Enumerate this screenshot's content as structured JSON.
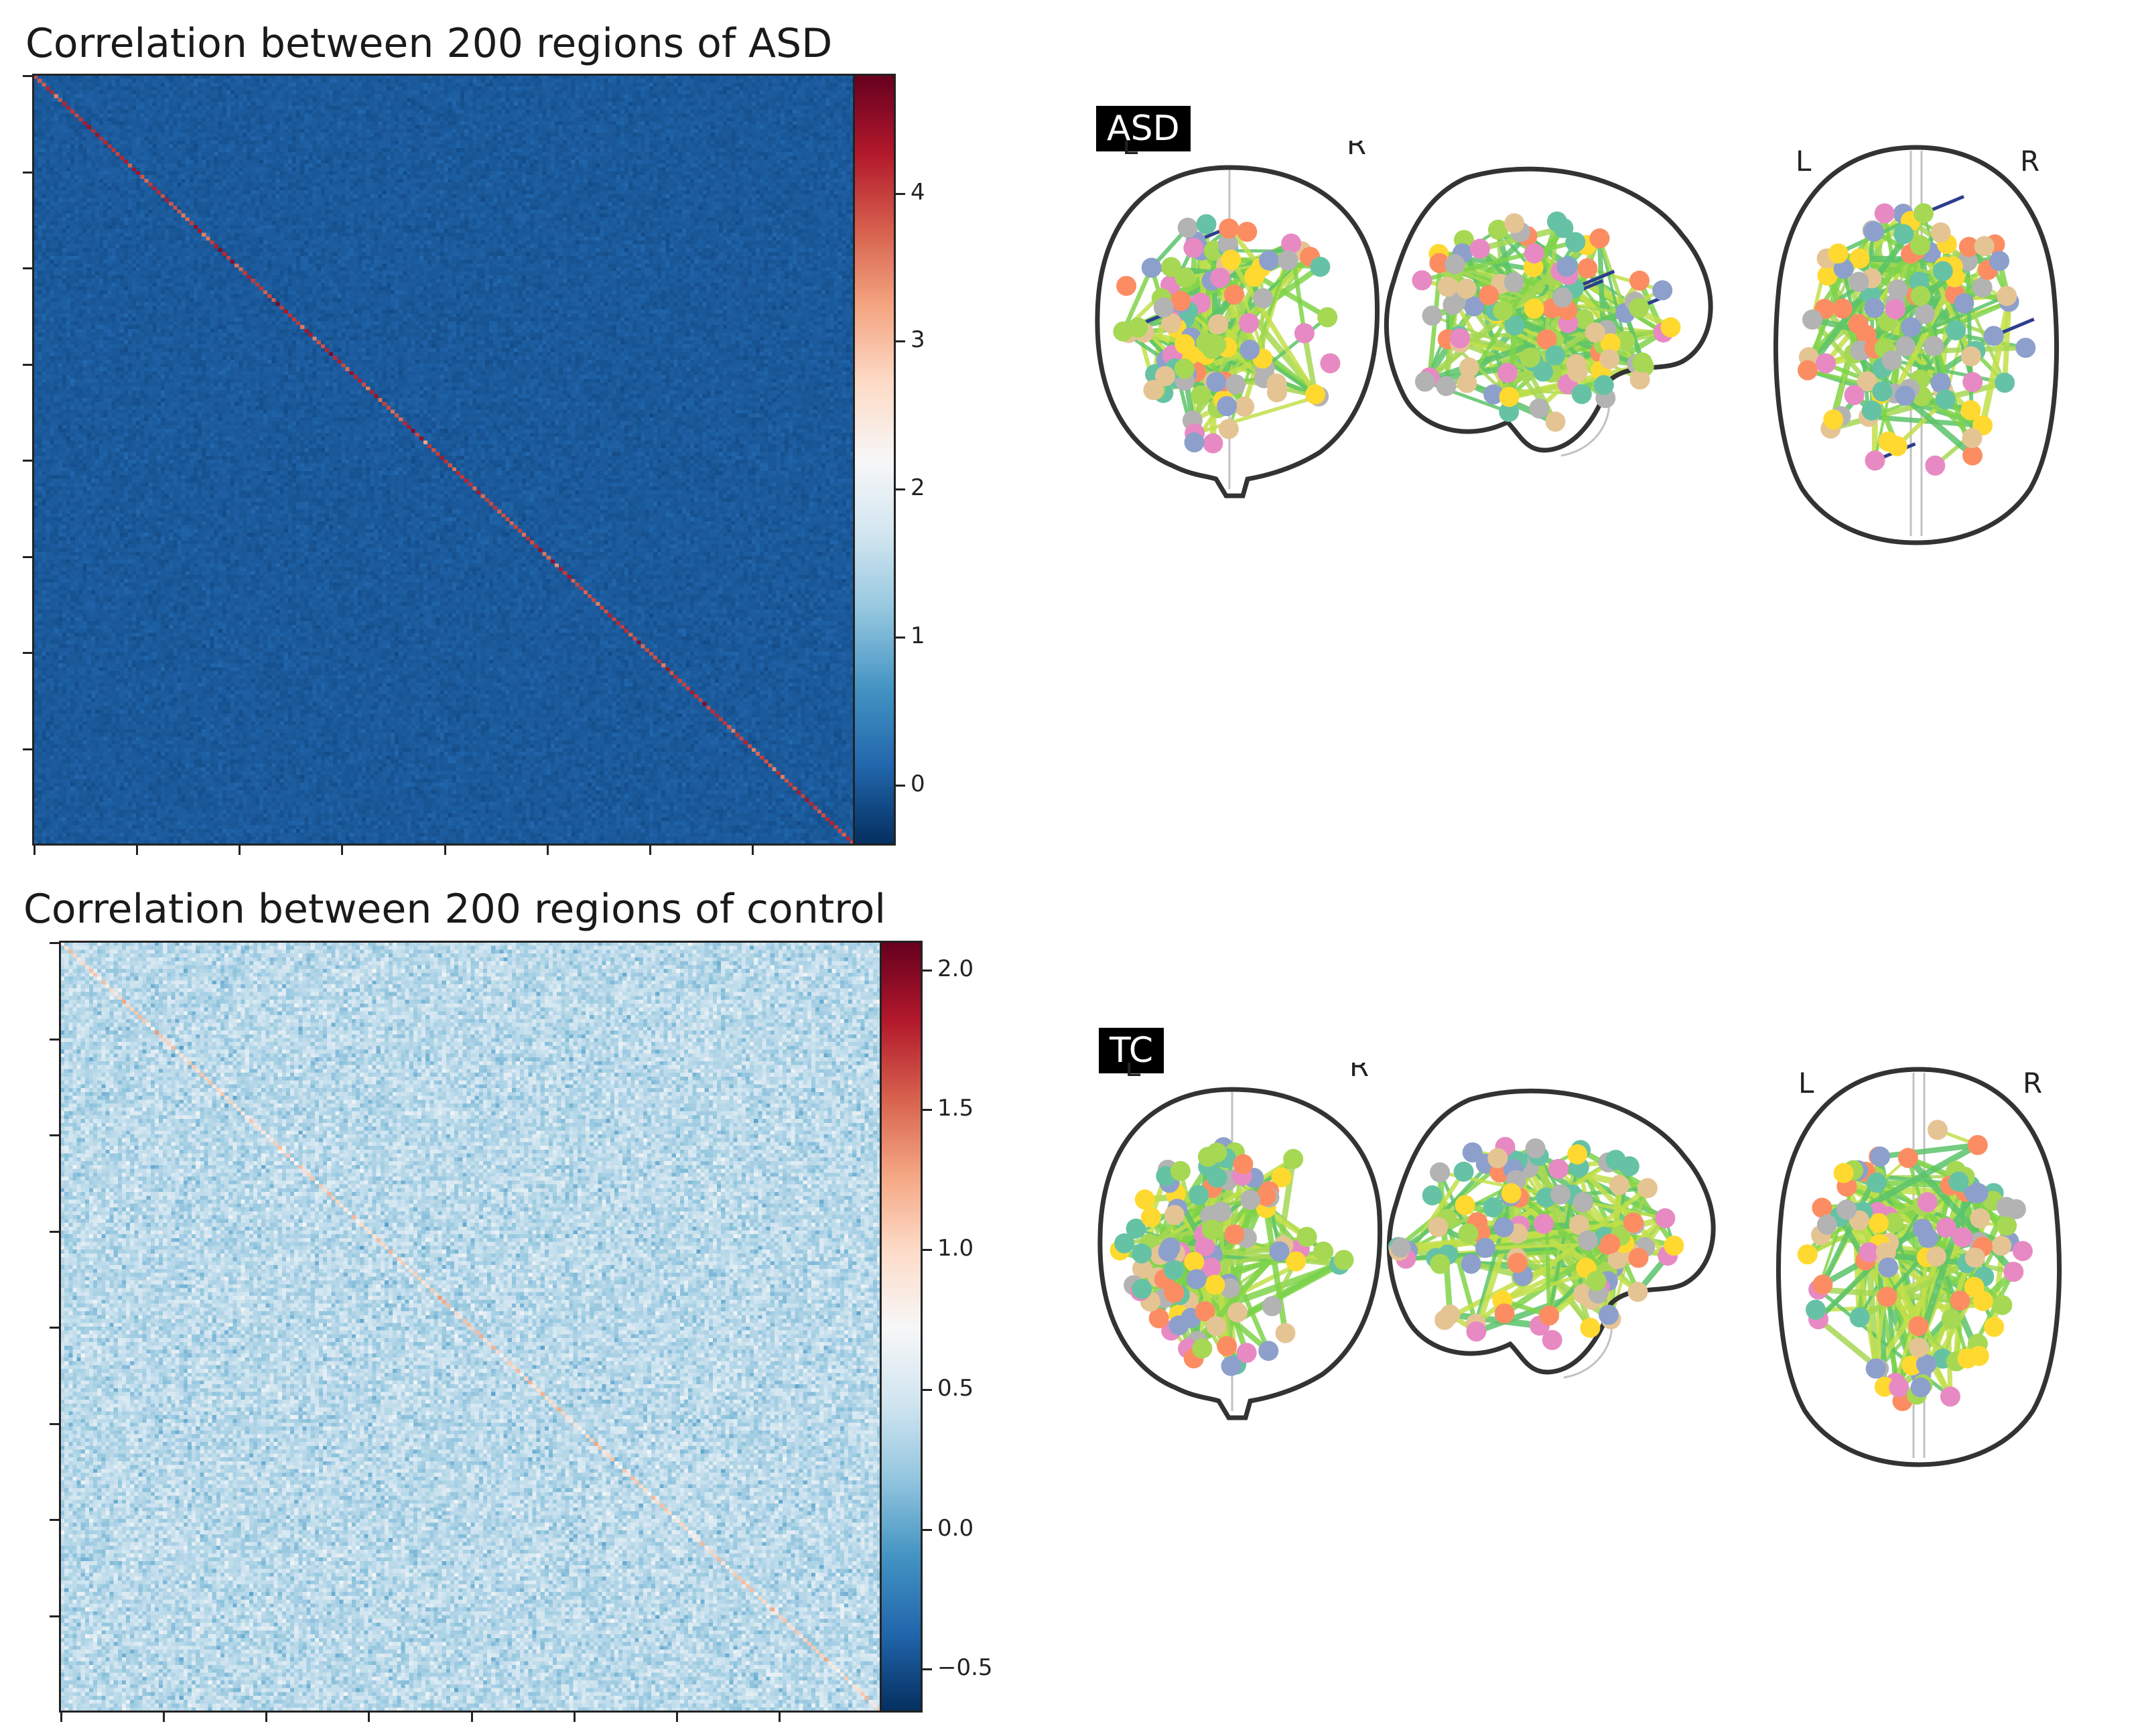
{
  "chart_data": [
    {
      "type": "heatmap",
      "title": "Correlation between 200 regions of ASD",
      "xlabel": "",
      "ylabel": "",
      "n_regions": 200,
      "off_diagonal_typical": 0.0,
      "diagonal_typical": 4.0,
      "colorbar": {
        "min": -0.4,
        "max": 4.8,
        "ticks": [
          "0",
          "1",
          "2",
          "3",
          "4"
        ],
        "tick_values": [
          0,
          1,
          2,
          3,
          4
        ],
        "cmap": "RdBu_r"
      },
      "connectome_label": "ASD"
    },
    {
      "type": "heatmap",
      "title": "Correlation between 200 regions of control",
      "xlabel": "",
      "ylabel": "",
      "n_regions": 200,
      "off_diagonal_typical": 0.35,
      "diagonal_typical": 1.0,
      "colorbar": {
        "min": -0.65,
        "max": 2.1,
        "ticks": [
          "−0.5",
          "0.0",
          "0.5",
          "1.0",
          "1.5",
          "2.0"
        ],
        "tick_values": [
          -0.5,
          0.0,
          0.5,
          1.0,
          1.5,
          2.0
        ],
        "cmap": "RdBu_r"
      },
      "connectome_label": "TC"
    }
  ],
  "connectome_views": {
    "side_labels": {
      "left": "L",
      "right": "R"
    },
    "node_colors": [
      "#66c2a5",
      "#fc8d62",
      "#8da0cb",
      "#e78ac3",
      "#a6d854",
      "#ffd92f",
      "#e5c494",
      "#b3b3b3"
    ],
    "edge_colors": [
      "#7fd44a",
      "#a6d854",
      "#5cc46a",
      "#c2e04a"
    ],
    "negative_edge_color": "#2c3e8c"
  }
}
